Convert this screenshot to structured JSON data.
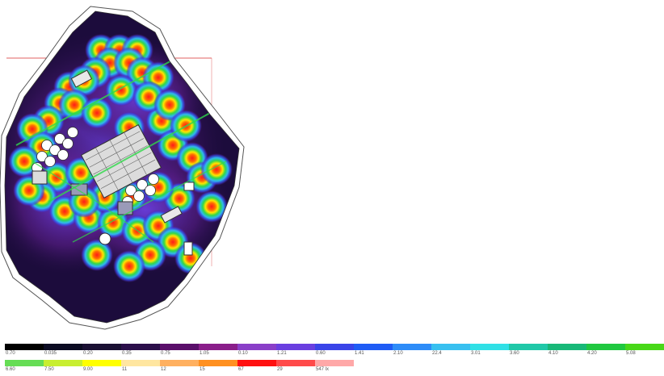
{
  "palette": {
    "background": "#ffffff",
    "outline": "#555555",
    "highlight_frame": "#e06060",
    "deep": "#0a0a2a",
    "hot": "#ff2a1a"
  },
  "legend": {
    "rows": [
      [
        {
          "label": "0.70",
          "color": "#000000"
        },
        {
          "label": "0.035",
          "color": "#0b0b22"
        },
        {
          "label": "0.20",
          "color": "#1a1033"
        },
        {
          "label": "0.35",
          "color": "#2b0f4a"
        },
        {
          "label": "0.75",
          "color": "#5a0f6a"
        },
        {
          "label": "1.05",
          "color": "#8a1e8a"
        },
        {
          "label": "0.10",
          "color": "#8a3fc8"
        },
        {
          "label": "1.21",
          "color": "#6a3fe0"
        },
        {
          "label": "0.60",
          "color": "#3a44e8"
        },
        {
          "label": "1.41",
          "color": "#1f5cf5"
        },
        {
          "label": "2.10",
          "color": "#2e8cf8"
        },
        {
          "label": "22.4",
          "color": "#38c0f0"
        },
        {
          "label": "3.01",
          "color": "#30e0e6"
        },
        {
          "label": "3.60",
          "color": "#20c8a8"
        },
        {
          "label": "4.10",
          "color": "#18b878"
        },
        {
          "label": "4.20",
          "color": "#20c840"
        },
        {
          "label": "5.08",
          "color": "#48d818"
        }
      ],
      [
        {
          "label": "6.60",
          "color": "#66dd55"
        },
        {
          "label": "7.50",
          "color": "#c8ee30"
        },
        {
          "label": "9.00",
          "color": "#ffff00"
        },
        {
          "label": "11",
          "color": "#ffe6a0"
        },
        {
          "label": "12",
          "color": "#ffb060"
        },
        {
          "label": "15",
          "color": "#ff9020"
        },
        {
          "label": "67",
          "color": "#ff1010"
        },
        {
          "label": "29",
          "color": "#ff4a4a"
        },
        {
          "label": "547 lx",
          "color": "#ffa8a8"
        }
      ]
    ]
  }
}
